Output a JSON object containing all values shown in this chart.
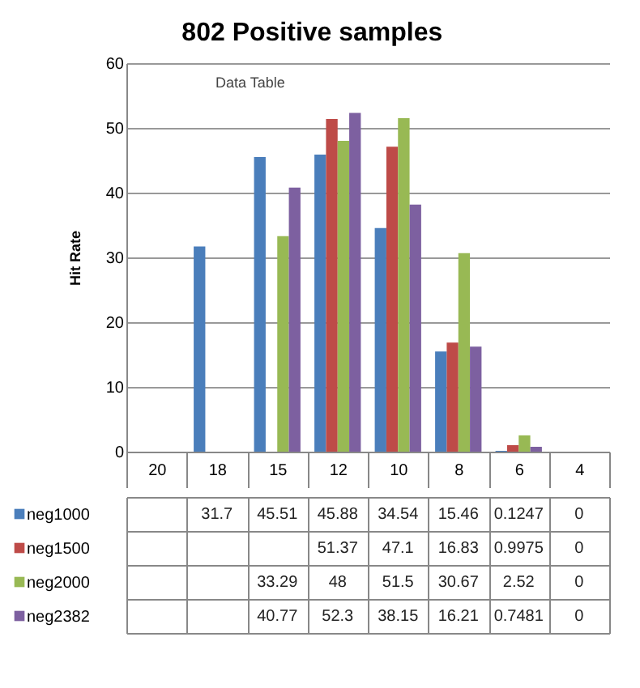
{
  "chart_data": {
    "type": "bar",
    "title": "802 Positive samples",
    "ylabel": "Hit Rate",
    "categories": [
      "20",
      "18",
      "15",
      "12",
      "10",
      "8",
      "6",
      "4"
    ],
    "series": [
      {
        "name": "neg1000",
        "color": "#4a7ebb",
        "values": [
          null,
          31.7,
          45.51,
          45.88,
          34.54,
          15.46,
          0.1247,
          0
        ]
      },
      {
        "name": "neg1500",
        "color": "#be4b48",
        "values": [
          null,
          null,
          null,
          51.37,
          47.1,
          16.83,
          0.9975,
          0
        ]
      },
      {
        "name": "neg2000",
        "color": "#98b954",
        "values": [
          null,
          null,
          33.29,
          48,
          51.5,
          30.67,
          2.52,
          0
        ]
      },
      {
        "name": "neg2382",
        "color": "#7d60a0",
        "values": [
          null,
          null,
          40.77,
          52.3,
          38.15,
          16.21,
          0.7481,
          0
        ]
      }
    ],
    "ylim": [
      0,
      60
    ],
    "yticks": [
      0,
      10,
      20,
      30,
      40,
      50,
      60
    ],
    "grid": "y",
    "legend": "bottom",
    "data_labels": true,
    "annotations": [
      "Data Table"
    ]
  }
}
